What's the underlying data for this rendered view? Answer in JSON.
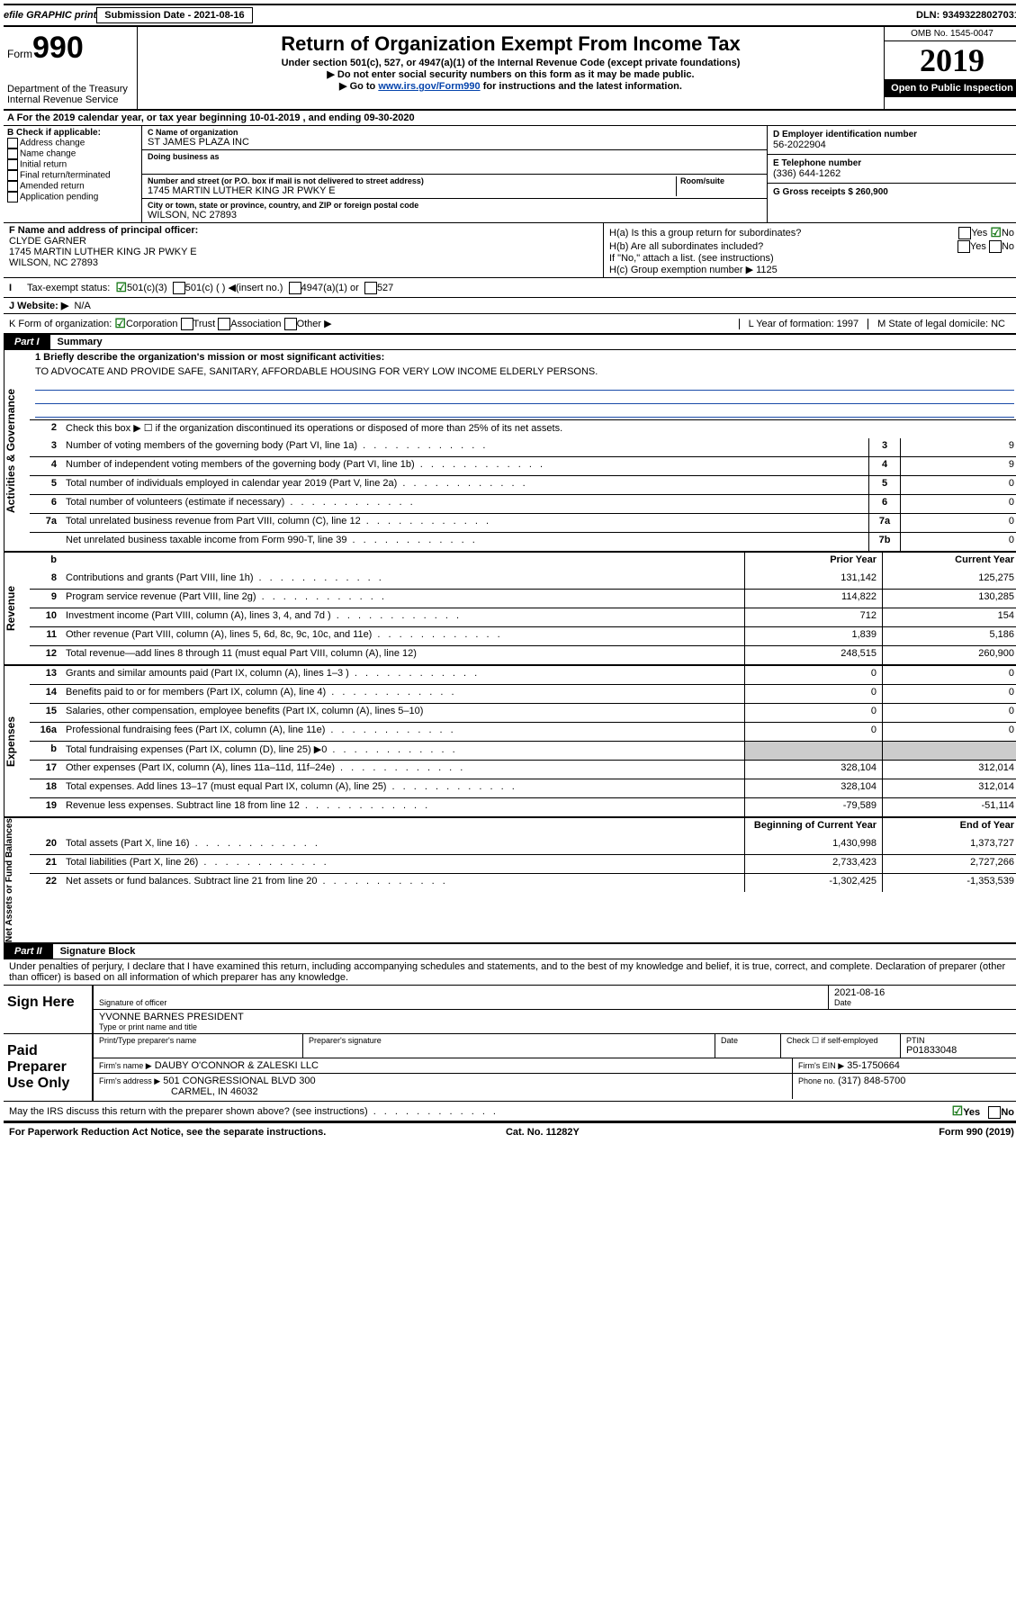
{
  "topbar": {
    "efile": "efile GRAPHIC print",
    "submission_label": "Submission Date - 2021-08-16",
    "dln_label": "DLN: 93493228027031"
  },
  "header": {
    "form_prefix": "Form",
    "form_number": "990",
    "dept": "Department of the Treasury",
    "irs": "Internal Revenue Service",
    "title": "Return of Organization Exempt From Income Tax",
    "subtitle": "Under section 501(c), 527, or 4947(a)(1) of the Internal Revenue Code (except private foundations)",
    "note1": "▶ Do not enter social security numbers on this form as it may be made public.",
    "note2_pre": "▶ Go to ",
    "note2_link": "www.irs.gov/Form990",
    "note2_post": " for instructions and the latest information.",
    "omb": "OMB No. 1545-0047",
    "year": "2019",
    "open": "Open to Public Inspection"
  },
  "rowA": "A For the 2019 calendar year, or tax year beginning 10-01-2019    , and ending 09-30-2020",
  "colB": {
    "header": "B Check if applicable:",
    "items": [
      "Address change",
      "Name change",
      "Initial return",
      "Final return/terminated",
      "Amended return",
      "Application pending"
    ]
  },
  "colC": {
    "name_label": "C Name of organization",
    "name": "ST JAMES PLAZA INC",
    "dba_label": "Doing business as",
    "addr_label": "Number and street (or P.O. box if mail is not delivered to street address)",
    "room_label": "Room/suite",
    "addr": "1745 MARTIN LUTHER KING JR PWKY E",
    "city_label": "City or town, state or province, country, and ZIP or foreign postal code",
    "city": "WILSON, NC  27893"
  },
  "colD": {
    "ein_label": "D Employer identification number",
    "ein": "56-2022904",
    "phone_label": "E Telephone number",
    "phone": "(336) 644-1262",
    "gross_label": "G Gross receipts $ 260,900"
  },
  "colF": {
    "label": "F  Name and address of principal officer:",
    "name": "CLYDE GARNER",
    "addr1": "1745 MARTIN LUTHER KING JR PWKY E",
    "addr2": "WILSON, NC  27893"
  },
  "colH": {
    "ha": "H(a)  Is this a group return for subordinates?",
    "hb": "H(b)  Are all subordinates included?",
    "hb_note": "If \"No,\" attach a list. (see instructions)",
    "hc": "H(c)  Group exemption number ▶   1125",
    "yes": "Yes",
    "no": "No"
  },
  "taxexempt": {
    "label": "Tax-exempt status:",
    "c3": "501(c)(3)",
    "c": "501(c) (  )  ◀(insert no.)",
    "a1": "4947(a)(1) or",
    "s527": "527"
  },
  "rowJ": {
    "label": "J Website: ▶",
    "value": "N/A"
  },
  "rowK": {
    "label": "K Form of organization:",
    "corp": "Corporation",
    "trust": "Trust",
    "assoc": "Association",
    "other": "Other ▶"
  },
  "rowL": {
    "label": "L Year of formation: 1997"
  },
  "rowM": {
    "label": "M State of legal domicile: NC"
  },
  "part1": {
    "tab": "Part I",
    "title": "Summary",
    "vlabels": {
      "ag": "Activities & Governance",
      "rev": "Revenue",
      "exp": "Expenses",
      "na": "Net Assets or Fund Balances"
    },
    "q1_label": "1  Briefly describe the organization's mission or most significant activities:",
    "q1_text": "TO ADVOCATE AND PROVIDE SAFE, SANITARY, AFFORDABLE HOUSING FOR VERY LOW INCOME ELDERLY PERSONS.",
    "q2": "Check this box ▶ ☐  if the organization discontinued its operations or disposed of more than 25% of its net assets.",
    "lines_ag": [
      {
        "n": "3",
        "d": "Number of voting members of the governing body (Part VI, line 1a)",
        "bn": "3",
        "v": "9"
      },
      {
        "n": "4",
        "d": "Number of independent voting members of the governing body (Part VI, line 1b)",
        "bn": "4",
        "v": "9"
      },
      {
        "n": "5",
        "d": "Total number of individuals employed in calendar year 2019 (Part V, line 2a)",
        "bn": "5",
        "v": "0"
      },
      {
        "n": "6",
        "d": "Total number of volunteers (estimate if necessary)",
        "bn": "6",
        "v": "0"
      },
      {
        "n": "7a",
        "d": "Total unrelated business revenue from Part VIII, column (C), line 12",
        "bn": "7a",
        "v": "0"
      },
      {
        "n": "",
        "d": "Net unrelated business taxable income from Form 990-T, line 39",
        "bn": "7b",
        "v": "0"
      }
    ],
    "hdr_prior": "Prior Year",
    "hdr_curr": "Current Year",
    "lines_rev": [
      {
        "n": "8",
        "d": "Contributions and grants (Part VIII, line 1h)",
        "p": "131,142",
        "c": "125,275"
      },
      {
        "n": "9",
        "d": "Program service revenue (Part VIII, line 2g)",
        "p": "114,822",
        "c": "130,285"
      },
      {
        "n": "10",
        "d": "Investment income (Part VIII, column (A), lines 3, 4, and 7d )",
        "p": "712",
        "c": "154"
      },
      {
        "n": "11",
        "d": "Other revenue (Part VIII, column (A), lines 5, 6d, 8c, 9c, 10c, and 11e)",
        "p": "1,839",
        "c": "5,186"
      },
      {
        "n": "12",
        "d": "Total revenue—add lines 8 through 11 (must equal Part VIII, column (A), line 12)",
        "p": "248,515",
        "c": "260,900"
      }
    ],
    "lines_exp": [
      {
        "n": "13",
        "d": "Grants and similar amounts paid (Part IX, column (A), lines 1–3 )",
        "p": "0",
        "c": "0"
      },
      {
        "n": "14",
        "d": "Benefits paid to or for members (Part IX, column (A), line 4)",
        "p": "0",
        "c": "0"
      },
      {
        "n": "15",
        "d": "Salaries, other compensation, employee benefits (Part IX, column (A), lines 5–10)",
        "p": "0",
        "c": "0"
      },
      {
        "n": "16a",
        "d": "Professional fundraising fees (Part IX, column (A), line 11e)",
        "p": "0",
        "c": "0"
      },
      {
        "n": "b",
        "d": "Total fundraising expenses (Part IX, column (D), line 25) ▶0",
        "p": "",
        "c": ""
      },
      {
        "n": "17",
        "d": "Other expenses (Part IX, column (A), lines 11a–11d, 11f–24e)",
        "p": "328,104",
        "c": "312,014"
      },
      {
        "n": "18",
        "d": "Total expenses. Add lines 13–17 (must equal Part IX, column (A), line 25)",
        "p": "328,104",
        "c": "312,014"
      },
      {
        "n": "19",
        "d": "Revenue less expenses. Subtract line 18 from line 12",
        "p": "-79,589",
        "c": "-51,114"
      }
    ],
    "hdr_beg": "Beginning of Current Year",
    "hdr_end": "End of Year",
    "lines_na": [
      {
        "n": "20",
        "d": "Total assets (Part X, line 16)",
        "p": "1,430,998",
        "c": "1,373,727"
      },
      {
        "n": "21",
        "d": "Total liabilities (Part X, line 26)",
        "p": "2,733,423",
        "c": "2,727,266"
      },
      {
        "n": "22",
        "d": "Net assets or fund balances. Subtract line 21 from line 20",
        "p": "-1,302,425",
        "c": "-1,353,539"
      }
    ]
  },
  "part2": {
    "tab": "Part II",
    "title": "Signature Block",
    "perjury": "Under penalties of perjury, I declare that I have examined this return, including accompanying schedules and statements, and to the best of my knowledge and belief, it is true, correct, and complete. Declaration of preparer (other than officer) is based on all information of which preparer has any knowledge.",
    "sign_here": "Sign Here",
    "sig_officer": "Signature of officer",
    "date_label": "Date",
    "date_val": "2021-08-16",
    "typed_name": "YVONNE BARNES  PRESIDENT",
    "typed_label": "Type or print name and title",
    "paid": "Paid Preparer Use Only",
    "prep_name_label": "Print/Type preparer's name",
    "prep_sig_label": "Preparer's signature",
    "check_self": "Check ☐ if self-employed",
    "ptin_label": "PTIN",
    "ptin": "P01833048",
    "firm_name_label": "Firm's name     ▶",
    "firm_name": "DAUBY O'CONNOR & ZALESKI LLC",
    "firm_ein_label": "Firm's EIN ▶",
    "firm_ein": "35-1750664",
    "firm_addr_label": "Firm's address ▶",
    "firm_addr1": "501 CONGRESSIONAL BLVD 300",
    "firm_addr2": "CARMEL, IN  46032",
    "firm_phone_label": "Phone no.",
    "firm_phone": "(317) 848-5700",
    "discuss": "May the IRS discuss this return with the preparer shown above? (see instructions)",
    "yes": "Yes",
    "no": "No"
  },
  "footer": {
    "pra": "For Paperwork Reduction Act Notice, see the separate instructions.",
    "cat": "Cat. No. 11282Y",
    "form": "Form 990 (2019)"
  }
}
